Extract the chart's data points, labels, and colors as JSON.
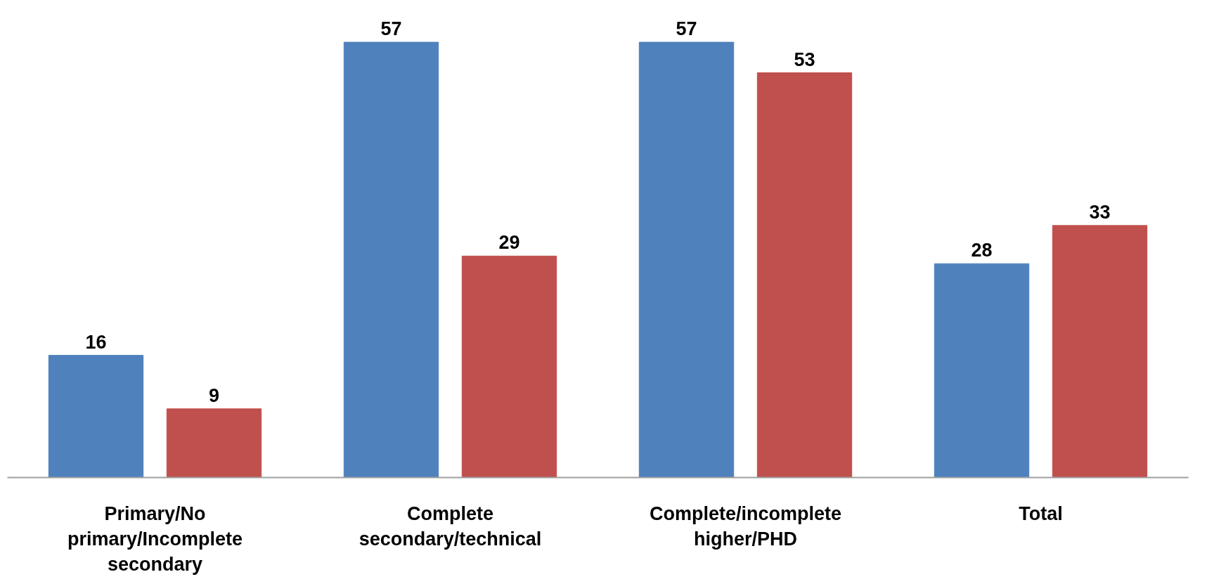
{
  "chart_data": {
    "type": "bar",
    "categories": [
      "Primary/No primary/Incomplete secondary",
      "Complete secondary/technical",
      "Complete/incomplete higher/PHD",
      "Total"
    ],
    "series": [
      {
        "color": "#4f81bd",
        "values": [
          16,
          57,
          57,
          28
        ]
      },
      {
        "color": "#c0504d",
        "values": [
          9,
          29,
          53,
          33
        ]
      }
    ],
    "data_labels": true,
    "grid": false
  }
}
